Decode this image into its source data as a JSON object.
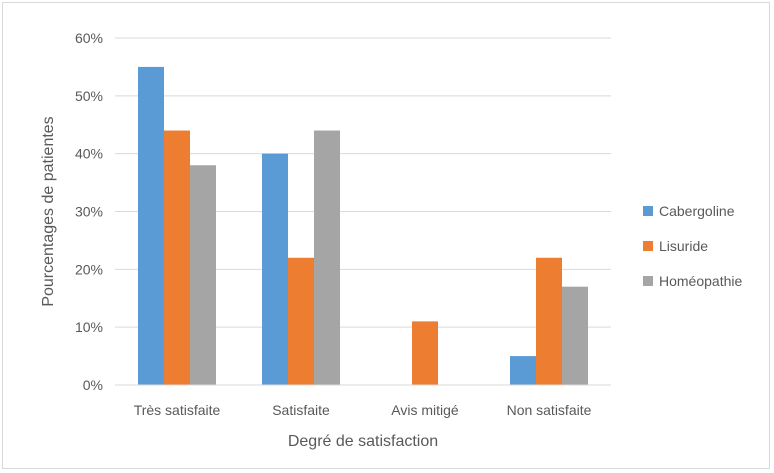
{
  "chart_data": {
    "type": "bar",
    "title": "",
    "xlabel": "Degré de satisfaction",
    "ylabel": "Pourcentages de patientes",
    "categories": [
      "Très satisfaite",
      "Satisfaite",
      "Avis mitigé",
      "Non satisfaite"
    ],
    "series": [
      {
        "name": "Cabergoline",
        "color": "#5b9bd5",
        "values": [
          55,
          40,
          0,
          5
        ]
      },
      {
        "name": "Lisuride",
        "color": "#ed7d31",
        "values": [
          44,
          22,
          11,
          22
        ]
      },
      {
        "name": "Homéopathie",
        "color": "#a5a5a5",
        "values": [
          38,
          44,
          0,
          17
        ]
      }
    ],
    "ylim": [
      0,
      60
    ],
    "yticks": [
      "0%",
      "10%",
      "20%",
      "30%",
      "40%",
      "50%",
      "60%"
    ],
    "grid": true,
    "legend_position": "right"
  }
}
